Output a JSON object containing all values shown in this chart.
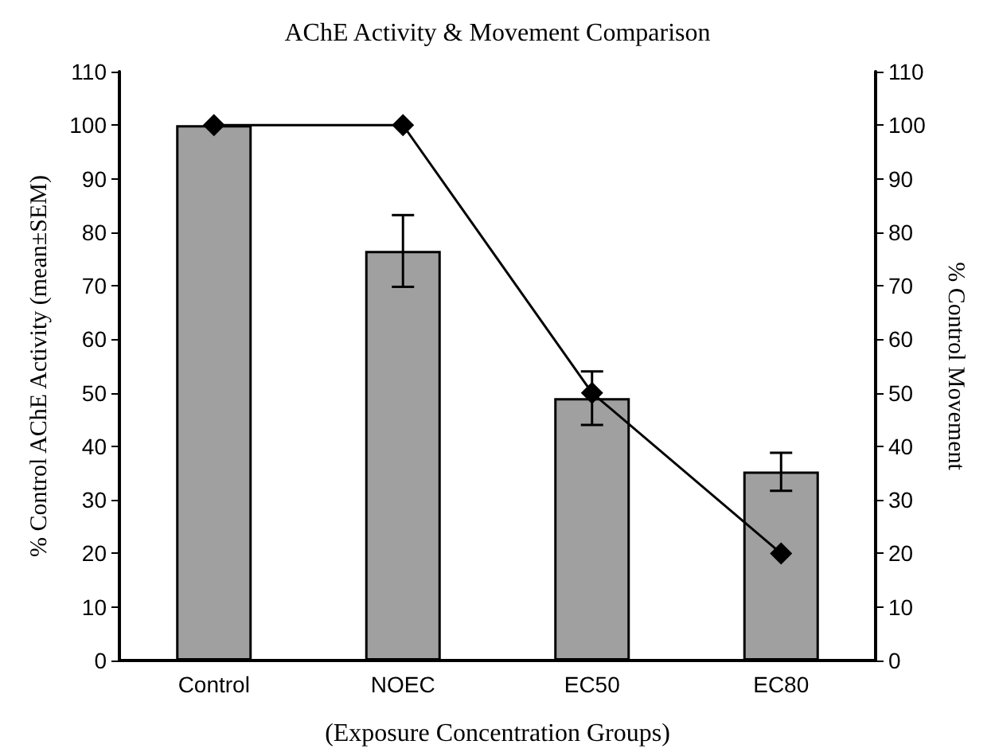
{
  "chart_data": {
    "type": "bar",
    "title": "AChE Activity & Movement Comparison",
    "xlabel": "(Exposure Concentration Groups)",
    "ylabel": "% Control AChE Activity (mean±SEM)",
    "y2label": "% Control Movement",
    "categories": [
      "Control",
      "NOEC",
      "EC50",
      "EC80"
    ],
    "series": [
      {
        "color": "#a0a0a0",
        "values": [
          100,
          76.5,
          49,
          35.3
        ],
        "errors": [
          null,
          [
            69.8,
            83.2
          ],
          [
            44,
            54
          ],
          [
            31.7,
            38.8
          ]
        ]
      },
      {
        "type": "line",
        "axis": "y2",
        "color": "#000000",
        "marker": "diamond",
        "values": [
          100,
          100,
          50,
          20
        ]
      }
    ],
    "ylim": [
      0,
      110
    ],
    "yticks": [
      0,
      10,
      20,
      30,
      40,
      50,
      60,
      70,
      80,
      90,
      100,
      110
    ],
    "y2lim": [
      0,
      110
    ],
    "y2ticks": [
      0,
      10,
      20,
      30,
      40,
      50,
      60,
      70,
      80,
      90,
      100,
      110
    ],
    "grid": false
  }
}
